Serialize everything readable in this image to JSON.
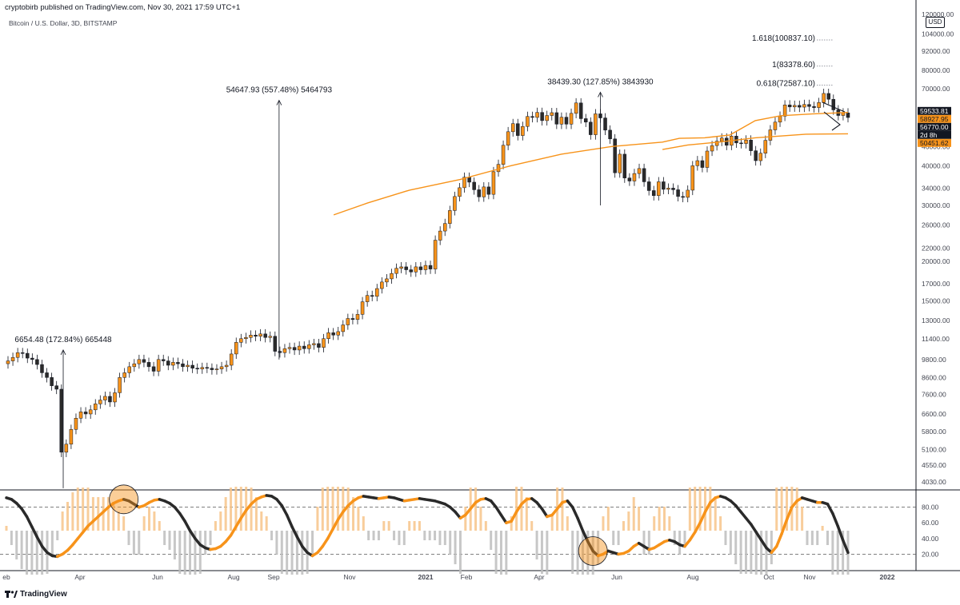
{
  "header": {
    "publish_line": "cryptobirb published on TradingView.com, Nov 30, 2021 17:59 UTC+1",
    "subtitle": "Bitcoin / U.S. Dollar, 3D, BITSTAMP",
    "currency": "USD"
  },
  "footer": {
    "brand": "TradingView",
    "logo_icon": "tradingview-logo-icon"
  },
  "colors": {
    "up": "#f7931a",
    "down": "#2a2a2a",
    "ma": "#f7931a",
    "axis": "#434651"
  },
  "chart_data": [
    {
      "type": "candlestick",
      "scale": "log",
      "ylim": [
        4030,
        120000
      ],
      "price_ticks": [
        "120000.00",
        "104000.00",
        "92000.00",
        "80000.00",
        "70000.00",
        "46000.00",
        "40000.00",
        "34000.00",
        "30000.00",
        "26000.00",
        "22000.00",
        "20000.00",
        "17000.00",
        "15000.00",
        "13000.00",
        "11400.00",
        "9800.00",
        "8600.00",
        "7600.00",
        "6600.00",
        "5800.00",
        "5100.00",
        "4550.00",
        "4030.00"
      ],
      "time_ticks": [
        "eb",
        "Apr",
        "Jun",
        "Aug",
        "Sep",
        "Nov",
        "2021",
        "Feb",
        "Apr",
        "Jun",
        "Aug",
        "Oct",
        "Nov",
        "2022"
      ],
      "price_tags": [
        {
          "text": "59533.81",
          "value": 59533.81,
          "bg": "#131722",
          "fg": "#ffffff"
        },
        {
          "text": "58927.95",
          "value": 58927.95,
          "bg": "#f7931a",
          "fg": "#131722"
        },
        {
          "text": "56770.00",
          "value": 56770,
          "bg": "#131722",
          "fg": "#ffffff"
        },
        {
          "text": "2d 8h",
          "value": 54300,
          "bg": "#131722",
          "fg": "#ffffff"
        },
        {
          "text": "50451.62",
          "value": 50451.62,
          "bg": "#f7931a",
          "fg": "#131722"
        }
      ],
      "fib_levels": [
        {
          "text": "1.618(100837.10)",
          "value": 100837.1
        },
        {
          "text": "1(83378.60)",
          "value": 83378.6
        },
        {
          "text": "0.618(72587.10)",
          "value": 72587.1
        }
      ],
      "measurements": [
        {
          "text": "6654.48 (172.84%) 665448",
          "x_date": "2020-03-22",
          "from": 3850,
          "to": 10500
        },
        {
          "text": "54647.93 (557.48%) 5464793",
          "x_date": "2020-09-08",
          "from": 9800,
          "to": 64300
        },
        {
          "text": "38439.30 (127.85%) 3843930",
          "x_date": "2021-05-19",
          "from": 30000,
          "to": 68200
        }
      ],
      "closes": [
        9700,
        9950,
        10300,
        10250,
        9900,
        9800,
        9450,
        8900,
        8600,
        8100,
        7900,
        5000,
        5300,
        5900,
        6400,
        6700,
        6600,
        6800,
        7100,
        7300,
        7500,
        7200,
        7700,
        8600,
        8900,
        9300,
        9500,
        9800,
        9600,
        9300,
        9000,
        9800,
        9700,
        9400,
        9600,
        9500,
        9300,
        9400,
        9200,
        9150,
        9250,
        9200,
        9100,
        9150,
        9300,
        9400,
        10200,
        11100,
        11400,
        11500,
        11700,
        11600,
        11800,
        11500,
        11600,
        10400,
        10300,
        10600,
        10700,
        10500,
        10800,
        10600,
        10900,
        11000,
        10700,
        11400,
        11900,
        11700,
        12000,
        12600,
        13200,
        13100,
        13600,
        14900,
        15600,
        15500,
        16400,
        17200,
        17600,
        18300,
        19000,
        19200,
        18800,
        18500,
        19200,
        18800,
        19400,
        18900,
        23300,
        24900,
        26300,
        28900,
        32000,
        34100,
        36800,
        35500,
        33600,
        31900,
        34300,
        32500,
        38300,
        40400,
        46400,
        51200,
        54300,
        49800,
        53200,
        57200,
        56800,
        58900,
        55500,
        57600,
        58800,
        54100,
        56900,
        54100,
        58500,
        63100,
        56300,
        54900,
        50100,
        58300,
        56600,
        51800,
        48600,
        38000,
        43500,
        36600,
        35800,
        37800,
        39200,
        35600,
        33400,
        32200,
        35600,
        33700,
        34000,
        33600,
        32000,
        31800,
        33500,
        40000,
        41500,
        39500,
        44500,
        46300,
        47800,
        48900,
        46400,
        49600,
        47200,
        47000,
        48200,
        44600,
        41500,
        43800,
        48100,
        51900,
        54900,
        57300,
        62200,
        61300,
        62000,
        61200,
        62400,
        61500,
        61000,
        63300,
        67600,
        64800,
        60000,
        57600,
        58700,
        56770
      ],
      "ma_points": [
        [
          0.39,
          28000
        ],
        [
          0.43,
          30500
        ],
        [
          0.48,
          33500
        ],
        [
          0.54,
          36200
        ],
        [
          0.6,
          40000
        ],
        [
          0.66,
          43500
        ],
        [
          0.72,
          46000
        ],
        [
          0.78,
          47500
        ],
        [
          0.8,
          48800
        ],
        [
          0.83,
          49000
        ],
        [
          0.86,
          50000
        ],
        [
          0.89,
          55500
        ],
        [
          0.92,
          57500
        ],
        [
          0.96,
          58300
        ],
        [
          1.0,
          58900
        ]
      ],
      "ma2_points": [
        [
          0.78,
          45000
        ],
        [
          0.81,
          46500
        ],
        [
          0.85,
          47600
        ],
        [
          0.89,
          49000
        ],
        [
          0.95,
          50300
        ],
        [
          1.0,
          50450
        ]
      ]
    },
    {
      "type": "oscillator",
      "ylim": [
        0,
        100
      ],
      "ticks": [
        "80.00",
        "60.00",
        "40.00",
        "20.00"
      ],
      "levels": [
        80,
        20
      ],
      "circles_at_index": [
        23,
        115,
        247,
        347
      ],
      "values": [
        92,
        90,
        85,
        78,
        68,
        55,
        42,
        30,
        22,
        18,
        17,
        20,
        25,
        32,
        40,
        48,
        56,
        62,
        68,
        74,
        80,
        85,
        88,
        90,
        88,
        84,
        80,
        82,
        86,
        89,
        90,
        88,
        85,
        80,
        72,
        62,
        50,
        40,
        32,
        28,
        26,
        27,
        30,
        36,
        44,
        55,
        66,
        76,
        84,
        90,
        93,
        95,
        94,
        90,
        82,
        70,
        55,
        42,
        30,
        22,
        18,
        22,
        30,
        40,
        52,
        64,
        74,
        82,
        88,
        92,
        94,
        93,
        92,
        91,
        92,
        93,
        92,
        90,
        88,
        89,
        90,
        91,
        90,
        89,
        88,
        86,
        84,
        80,
        74,
        66,
        70,
        78,
        86,
        90,
        91,
        88,
        80,
        70,
        60,
        62,
        74,
        84,
        90,
        91,
        86,
        78,
        68,
        70,
        78,
        86,
        88,
        80,
        66,
        50,
        36,
        24,
        18,
        20,
        24,
        22,
        20,
        21,
        24,
        30,
        34,
        30,
        26,
        28,
        32,
        36,
        38,
        36,
        32,
        30,
        38,
        48,
        60,
        74,
        86,
        92,
        94,
        92,
        88,
        82,
        74,
        66,
        58,
        48,
        38,
        28,
        22,
        30,
        46,
        64,
        80,
        88,
        92,
        90,
        88,
        86,
        86,
        84,
        72,
        56,
        38,
        22
      ]
    }
  ]
}
